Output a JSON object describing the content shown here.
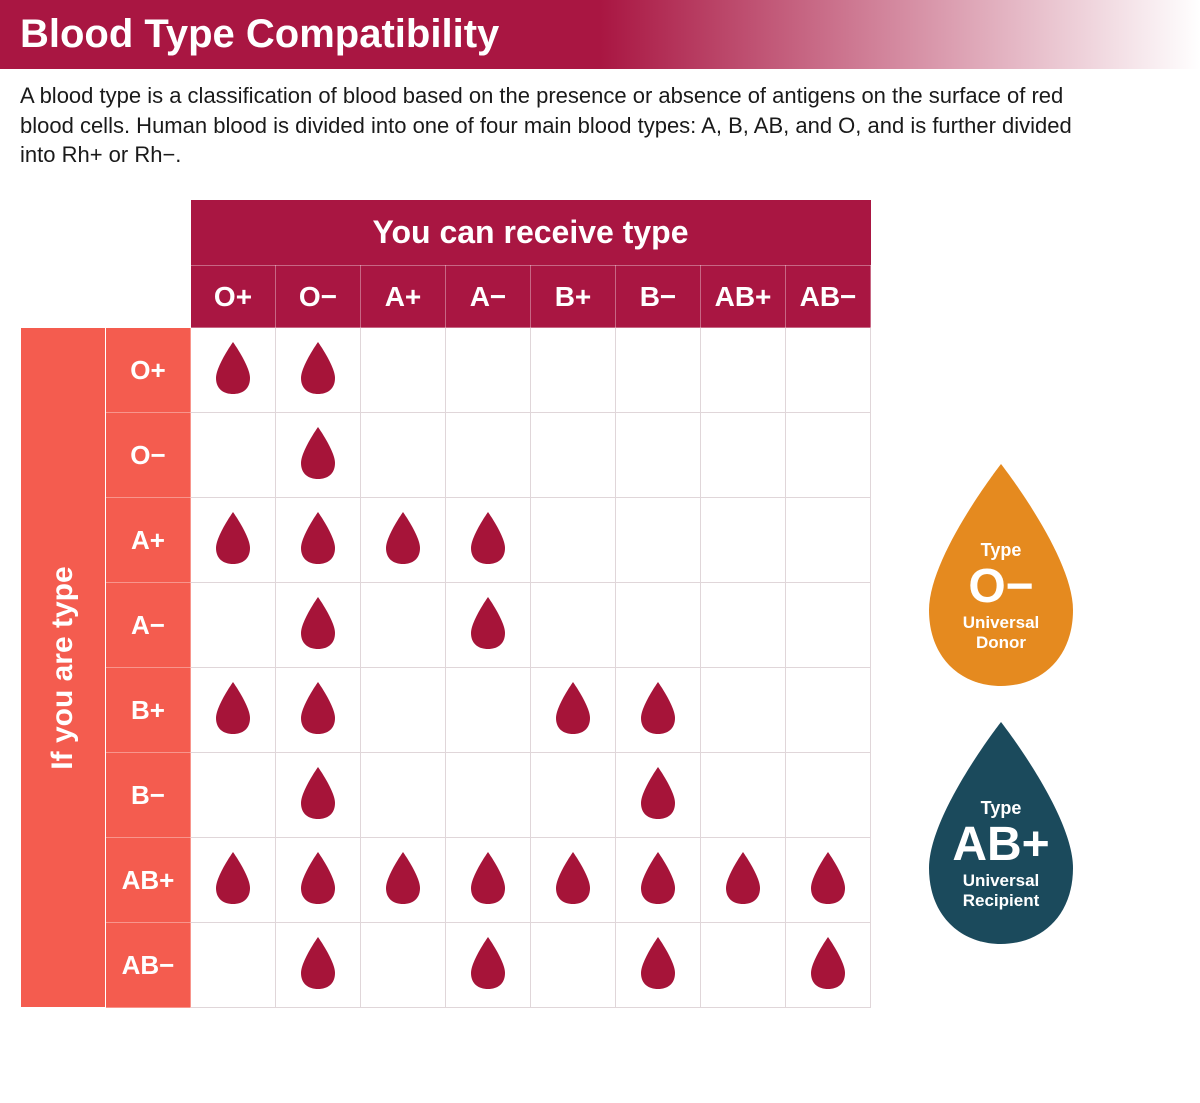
{
  "colors": {
    "header_maroon": "#a91642",
    "row_header_coral": "#f45c4f",
    "drop_fill": "#a61439",
    "cell_border": "#e0d6d9",
    "donor_orange": "#e58a1f",
    "recipient_teal": "#1b4a5c",
    "white": "#ffffff",
    "text": "#1a1a1a"
  },
  "title": "Blood Type Compatibility",
  "description": "A blood type is a classification of blood based on the presence or absence of antigens on the surface of red blood cells. Human blood is divided into one of four main blood types: A, B, AB, and O, and is further divided into Rh+ or Rh−.",
  "table": {
    "col_title": "You can receive type",
    "row_title": "If you are type",
    "columns": [
      "O+",
      "O−",
      "A+",
      "A−",
      "B+",
      "B−",
      "AB+",
      "AB−"
    ],
    "rows": [
      "O+",
      "O−",
      "A+",
      "A−",
      "B+",
      "B−",
      "AB+",
      "AB−"
    ],
    "compatibility": {
      "O+": [
        1,
        1,
        0,
        0,
        0,
        0,
        0,
        0
      ],
      "O−": [
        0,
        1,
        0,
        0,
        0,
        0,
        0,
        0
      ],
      "A+": [
        1,
        1,
        1,
        1,
        0,
        0,
        0,
        0
      ],
      "A−": [
        0,
        1,
        0,
        1,
        0,
        0,
        0,
        0
      ],
      "B+": [
        1,
        1,
        0,
        0,
        1,
        1,
        0,
        0
      ],
      "B−": [
        0,
        1,
        0,
        0,
        0,
        1,
        0,
        0
      ],
      "AB+": [
        1,
        1,
        1,
        1,
        1,
        1,
        1,
        1
      ],
      "AB−": [
        0,
        1,
        0,
        1,
        0,
        1,
        0,
        1
      ]
    }
  },
  "callouts": {
    "donor": {
      "prefix": "Type",
      "type": "O−",
      "subtitle": "Universal\nDonor",
      "fill": "#e58a1f"
    },
    "recipient": {
      "prefix": "Type",
      "type": "AB+",
      "subtitle": "Universal\nRecipient",
      "fill": "#1b4a5c"
    }
  }
}
